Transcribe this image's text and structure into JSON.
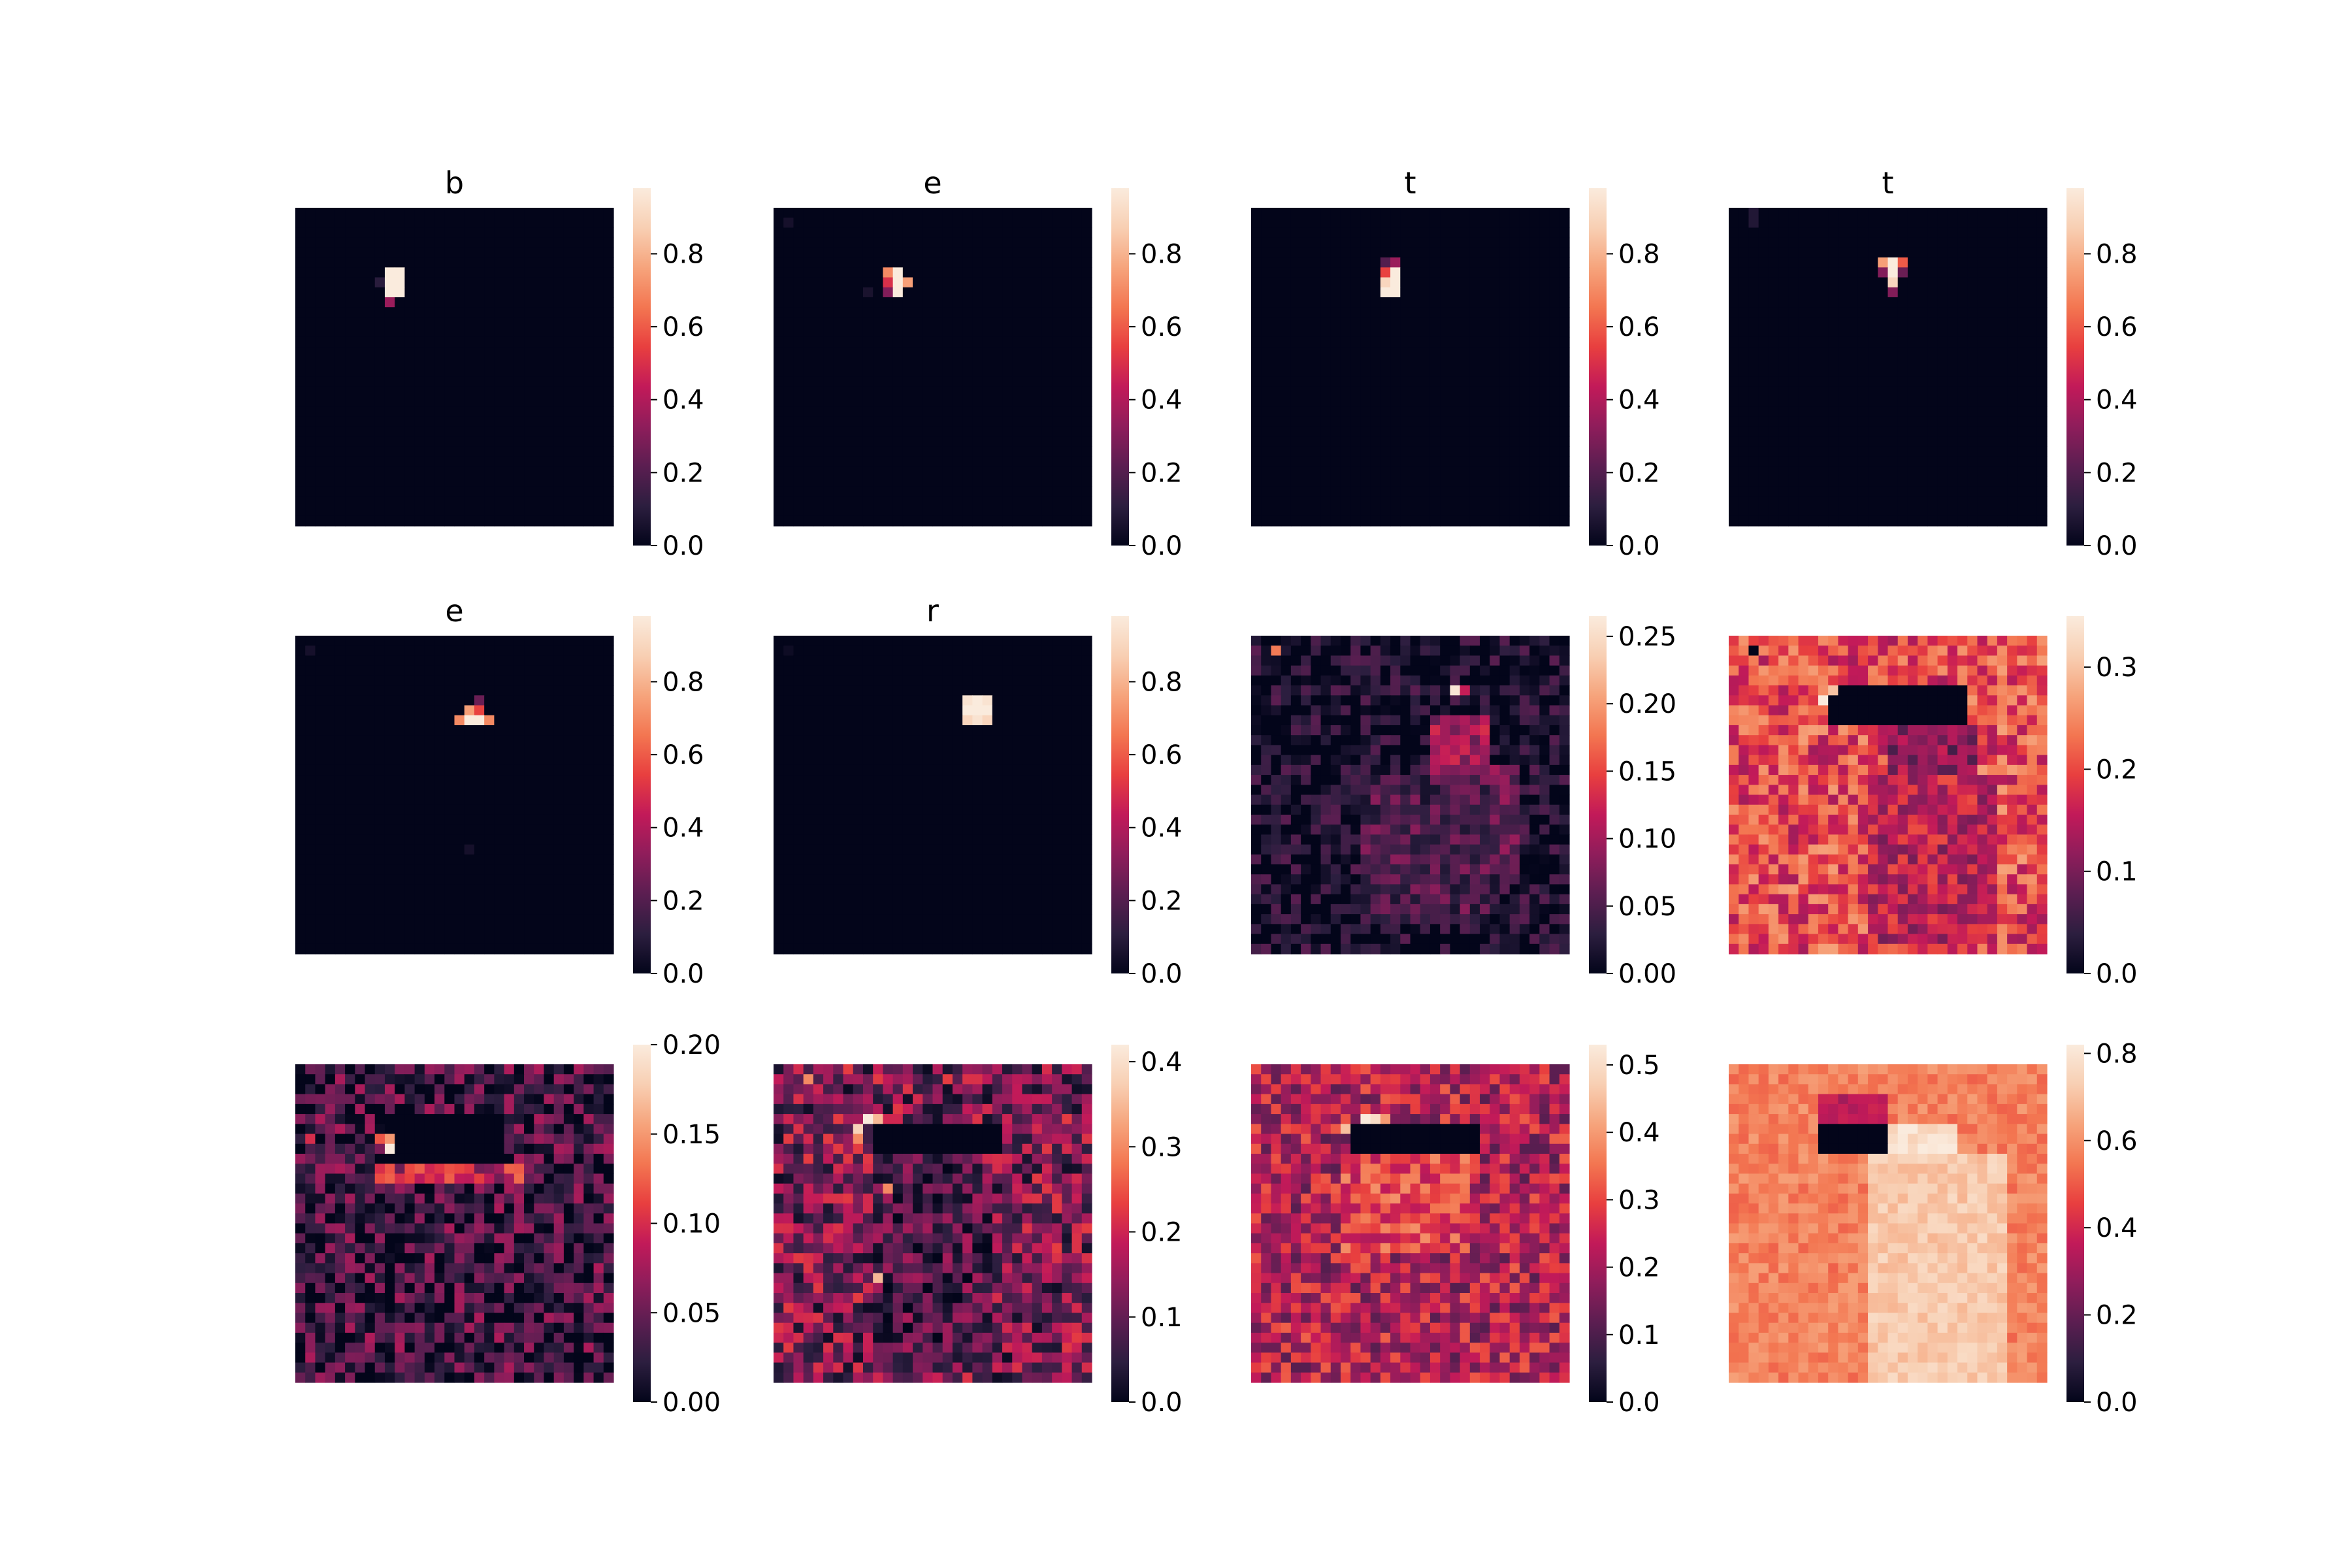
{
  "figure": {
    "colormap": "rocket",
    "colormap_stops": [
      "#03051a",
      "#2c1e3f",
      "#5b1e51",
      "#8f1d5b",
      "#c21a59",
      "#e83f3f",
      "#f37651",
      "#f6a47c",
      "#f8cfb3",
      "#faebdd"
    ]
  },
  "chart_data": [
    {
      "type": "heatmap",
      "title": "b",
      "grid": [
        32,
        32
      ],
      "vmin": 0.0,
      "vmax": 0.98,
      "colorbar_ticks": [
        "0.0",
        "0.2",
        "0.4",
        "0.6",
        "0.8"
      ],
      "colorbar_values": [
        0.0,
        0.2,
        0.4,
        0.6,
        0.8
      ],
      "background_level": 0.0,
      "background_noise": 0.0,
      "noise_seed": 1,
      "regions": [
        {
          "cells": [
            [
              10,
              6
            ],
            [
              10,
              7
            ],
            [
              9,
              6
            ],
            [
              9,
              7
            ]
          ],
          "value": 0.98
        },
        {
          "cells": [
            [
              9,
              8
            ]
          ],
          "value": 0.98
        }
      ],
      "cells": [
        [
          9,
          6,
          0.98
        ],
        [
          9,
          7,
          0.98
        ],
        [
          10,
          6,
          0.98
        ],
        [
          10,
          7,
          0.98
        ],
        [
          9,
          8,
          0.98
        ],
        [
          10,
          8,
          0.98
        ],
        [
          9,
          9,
          0.35
        ],
        [
          8,
          7,
          0.1
        ]
      ]
    },
    {
      "type": "heatmap",
      "title": "e",
      "grid": [
        32,
        32
      ],
      "vmin": 0.0,
      "vmax": 0.98,
      "colorbar_ticks": [
        "0.0",
        "0.2",
        "0.4",
        "0.6",
        "0.8"
      ],
      "colorbar_values": [
        0.0,
        0.2,
        0.4,
        0.6,
        0.8
      ],
      "background_level": 0.0,
      "background_noise": 0.0,
      "noise_seed": 2,
      "regions": [],
      "cells": [
        [
          12,
          6,
          0.98
        ],
        [
          12,
          7,
          0.98
        ],
        [
          12,
          8,
          0.98
        ],
        [
          11,
          6,
          0.7
        ],
        [
          11,
          7,
          0.5
        ],
        [
          13,
          7,
          0.75
        ],
        [
          11,
          8,
          0.3
        ],
        [
          1,
          1,
          0.05
        ],
        [
          9,
          8,
          0.06
        ]
      ]
    },
    {
      "type": "heatmap",
      "title": "t",
      "grid": [
        32,
        32
      ],
      "vmin": 0.0,
      "vmax": 0.98,
      "colorbar_ticks": [
        "0.0",
        "0.2",
        "0.4",
        "0.6",
        "0.8"
      ],
      "colorbar_values": [
        0.0,
        0.2,
        0.4,
        0.6,
        0.8
      ],
      "background_level": 0.0,
      "background_noise": 0.0,
      "noise_seed": 3,
      "regions": [],
      "cells": [
        [
          14,
          6,
          0.98
        ],
        [
          14,
          7,
          0.98
        ],
        [
          14,
          8,
          0.98
        ],
        [
          13,
          7,
          0.9
        ],
        [
          13,
          8,
          0.98
        ],
        [
          13,
          6,
          0.55
        ],
        [
          14,
          5,
          0.35
        ],
        [
          13,
          5,
          0.2
        ]
      ]
    },
    {
      "type": "heatmap",
      "title": "t",
      "grid": [
        32,
        32
      ],
      "vmin": 0.0,
      "vmax": 0.98,
      "colorbar_ticks": [
        "0.0",
        "0.2",
        "0.4",
        "0.6",
        "0.8"
      ],
      "colorbar_values": [
        0.0,
        0.2,
        0.4,
        0.6,
        0.8
      ],
      "background_level": 0.0,
      "background_noise": 0.0,
      "noise_seed": 4,
      "regions": [],
      "cells": [
        [
          15,
          5,
          0.75
        ],
        [
          16,
          5,
          0.98
        ],
        [
          17,
          5,
          0.6
        ],
        [
          16,
          6,
          0.98
        ],
        [
          16,
          7,
          0.9
        ],
        [
          15,
          6,
          0.3
        ],
        [
          17,
          6,
          0.25
        ],
        [
          16,
          8,
          0.3
        ],
        [
          2,
          0,
          0.08
        ],
        [
          2,
          1,
          0.08
        ]
      ]
    },
    {
      "type": "heatmap",
      "title": "e",
      "grid": [
        32,
        32
      ],
      "vmin": 0.0,
      "vmax": 0.98,
      "colorbar_ticks": [
        "0.0",
        "0.2",
        "0.4",
        "0.6",
        "0.8"
      ],
      "colorbar_values": [
        0.0,
        0.2,
        0.4,
        0.6,
        0.8
      ],
      "background_level": 0.0,
      "background_noise": 0.0,
      "noise_seed": 5,
      "regions": [],
      "cells": [
        [
          17,
          8,
          0.98
        ],
        [
          18,
          8,
          0.98
        ],
        [
          16,
          8,
          0.7
        ],
        [
          19,
          8,
          0.7
        ],
        [
          17,
          7,
          0.75
        ],
        [
          18,
          7,
          0.55
        ],
        [
          18,
          6,
          0.25
        ],
        [
          1,
          1,
          0.05
        ],
        [
          17,
          21,
          0.05
        ]
      ]
    },
    {
      "type": "heatmap",
      "title": "r",
      "grid": [
        32,
        32
      ],
      "vmin": 0.0,
      "vmax": 0.98,
      "colorbar_ticks": [
        "0.0",
        "0.2",
        "0.4",
        "0.6",
        "0.8"
      ],
      "colorbar_values": [
        0.0,
        0.2,
        0.4,
        0.6,
        0.8
      ],
      "background_level": 0.0,
      "background_noise": 0.0,
      "noise_seed": 6,
      "regions": [],
      "cells": [
        [
          19,
          6,
          0.95
        ],
        [
          20,
          6,
          0.98
        ],
        [
          21,
          6,
          0.95
        ],
        [
          19,
          7,
          0.98
        ],
        [
          20,
          7,
          0.98
        ],
        [
          21,
          7,
          0.98
        ],
        [
          19,
          8,
          0.9
        ],
        [
          20,
          8,
          0.95
        ],
        [
          21,
          8,
          0.9
        ],
        [
          1,
          1,
          0.03
        ]
      ]
    },
    {
      "type": "heatmap",
      "title": "",
      "grid": [
        32,
        32
      ],
      "vmin": 0.0,
      "vmax": 0.265,
      "colorbar_ticks": [
        "0.00",
        "0.05",
        "0.10",
        "0.15",
        "0.20",
        "0.25"
      ],
      "colorbar_values": [
        0.0,
        0.05,
        0.1,
        0.15,
        0.2,
        0.25
      ],
      "background_level": 0.015,
      "background_noise": 0.045,
      "noise_seed": 7,
      "regions": [
        {
          "cells_rect": [
            18,
            8,
            23,
            14
          ],
          "value": 0.1
        },
        {
          "cells_rect": [
            17,
            13,
            26,
            23
          ],
          "value": 0.07
        },
        {
          "cells_rect": [
            11,
            14,
            23,
            28
          ],
          "value": 0.05
        }
      ],
      "cells": [
        [
          20,
          5,
          0.26
        ],
        [
          2,
          1,
          0.18
        ],
        [
          21,
          5,
          0.12
        ]
      ]
    },
    {
      "type": "heatmap",
      "title": "",
      "grid": [
        32,
        32
      ],
      "vmin": 0.0,
      "vmax": 0.35,
      "colorbar_ticks": [
        "0.0",
        "0.1",
        "0.2",
        "0.3"
      ],
      "colorbar_values": [
        0.0,
        0.1,
        0.2,
        0.3
      ],
      "background_level": 0.2,
      "background_noise": 0.07,
      "noise_seed": 8,
      "regions": [
        {
          "cells_rect": [
            10,
            5,
            23,
            8
          ],
          "value": 0.0
        },
        {
          "cells_rect": [
            16,
            9,
            24,
            13
          ],
          "value": 0.11
        },
        {
          "cells_rect": [
            14,
            14,
            26,
            30
          ],
          "value": 0.15
        }
      ],
      "cells": [
        [
          9,
          6,
          0.35
        ],
        [
          10,
          5,
          0.3
        ],
        [
          2,
          1,
          0.0
        ]
      ]
    },
    {
      "type": "heatmap",
      "title": "",
      "grid": [
        32,
        32
      ],
      "vmin": 0.0,
      "vmax": 0.2,
      "colorbar_ticks": [
        "0.00",
        "0.05",
        "0.10",
        "0.15",
        "0.20"
      ],
      "colorbar_values": [
        0.0,
        0.05,
        0.1,
        0.15,
        0.2
      ],
      "background_level": 0.03,
      "background_noise": 0.05,
      "noise_seed": 9,
      "regions": [
        {
          "cells_rect": [
            9,
            5,
            20,
            9
          ],
          "value": 0.0
        },
        {
          "cells_rect": [
            8,
            10,
            22,
            11
          ],
          "value": 0.09
        }
      ],
      "cells": [
        [
          9,
          8,
          0.2
        ],
        [
          9,
          7,
          0.15
        ],
        [
          8,
          7,
          0.12
        ],
        [
          1,
          7,
          0.1
        ]
      ]
    },
    {
      "type": "heatmap",
      "title": "",
      "grid": [
        32,
        32
      ],
      "vmin": 0.0,
      "vmax": 0.42,
      "colorbar_ticks": [
        "0.0",
        "0.1",
        "0.2",
        "0.3",
        "0.4"
      ],
      "colorbar_values": [
        0.0,
        0.1,
        0.2,
        0.3,
        0.4
      ],
      "background_level": 0.12,
      "background_noise": 0.11,
      "noise_seed": 10,
      "regions": [
        {
          "cells_rect": [
            10,
            6,
            22,
            8
          ],
          "value": 0.0
        },
        {
          "cells_rect": [
            10,
            10,
            21,
            30
          ],
          "value": 0.08
        }
      ],
      "cells": [
        [
          9,
          5,
          0.42
        ],
        [
          10,
          5,
          0.35
        ],
        [
          8,
          6,
          0.38
        ],
        [
          8,
          7,
          0.3
        ],
        [
          11,
          12,
          0.3
        ],
        [
          3,
          1,
          0.3
        ],
        [
          10,
          21,
          0.35
        ]
      ]
    },
    {
      "type": "heatmap",
      "title": "",
      "grid": [
        32,
        32
      ],
      "vmin": 0.0,
      "vmax": 0.53,
      "colorbar_ticks": [
        "0.0",
        "0.1",
        "0.2",
        "0.3",
        "0.4",
        "0.5"
      ],
      "colorbar_values": [
        0.0,
        0.1,
        0.2,
        0.3,
        0.4,
        0.5
      ],
      "background_level": 0.22,
      "background_noise": 0.11,
      "noise_seed": 11,
      "regions": [
        {
          "cells_rect": [
            10,
            6,
            22,
            8
          ],
          "value": 0.0
        },
        {
          "cells_rect": [
            9,
            9,
            21,
            18
          ],
          "value": 0.3
        }
      ],
      "cells": [
        [
          11,
          5,
          0.53
        ],
        [
          12,
          5,
          0.5
        ],
        [
          9,
          6,
          0.45
        ],
        [
          13,
          5,
          0.4
        ]
      ]
    },
    {
      "type": "heatmap",
      "title": "",
      "grid": [
        32,
        32
      ],
      "vmin": 0.0,
      "vmax": 0.82,
      "colorbar_ticks": [
        "0.0",
        "0.2",
        "0.4",
        "0.6",
        "0.8"
      ],
      "colorbar_values": [
        0.0,
        0.2,
        0.4,
        0.6,
        0.8
      ],
      "background_level": 0.57,
      "background_noise": 0.06,
      "noise_seed": 12,
      "regions": [
        {
          "cells_rect": [
            9,
            6,
            22,
            8
          ],
          "value": 0.0
        },
        {
          "cells_rect": [
            16,
            6,
            22,
            8
          ],
          "value": 0.78
        },
        {
          "cells_rect": [
            9,
            3,
            15,
            5
          ],
          "value": 0.35
        },
        {
          "cells_rect": [
            14,
            9,
            27,
            31
          ],
          "value": 0.72
        }
      ],
      "cells": [
        [
          9,
          6,
          0.0
        ],
        [
          10,
          6,
          0.0
        ],
        [
          11,
          6,
          0.0
        ]
      ]
    }
  ]
}
